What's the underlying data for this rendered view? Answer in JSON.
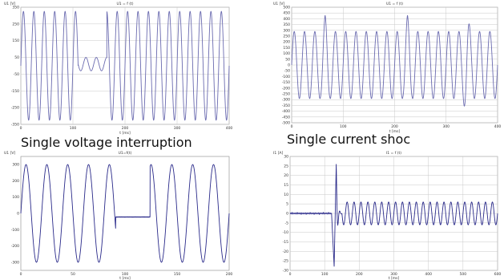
{
  "captions": {
    "top_left": "Single voltage interruption",
    "top_right": "Single current shoc"
  },
  "chart_data": [
    {
      "id": "tl",
      "type": "line",
      "title": "U1 = f (t)",
      "ylabel": "U1 [V]",
      "xlabel": "t [ms]",
      "xlim": [
        0,
        400
      ],
      "ylim": [
        -350,
        350
      ],
      "xticks": [
        0,
        100,
        200,
        300,
        400
      ],
      "yticks": [
        350,
        250,
        150,
        50,
        -50,
        -150,
        -250,
        -350
      ],
      "ytick_labels": [
        "350",
        "250",
        "150",
        "50",
        "-50",
        "-150",
        "-250",
        "-350"
      ],
      "grid": true,
      "series": [
        {
          "color": "#6b6bb0",
          "signal": {
            "segments": [
              {
                "start": 0,
                "end": 110,
                "kind": "sine",
                "freq_hz": 50,
                "amplitude": 325,
                "offset": 0
              },
              {
                "start": 110,
                "end": 165,
                "kind": "sine",
                "freq_hz": 50,
                "amplitude": 40,
                "offset": 10
              },
              {
                "start": 165,
                "end": 400,
                "kind": "sine",
                "freq_hz": 50,
                "amplitude": 325,
                "offset": 0
              }
            ]
          }
        }
      ]
    },
    {
      "id": "tr",
      "type": "line",
      "title": "U1 = f (t)",
      "ylabel": "U1 [V]",
      "xlabel": "t [ms]",
      "xlim": [
        0,
        400
      ],
      "ylim": [
        -500,
        500
      ],
      "xticks": [
        0,
        100,
        200,
        300,
        400
      ],
      "yticks": [
        500,
        450,
        400,
        350,
        300,
        250,
        200,
        150,
        100,
        50,
        0,
        -50,
        -100,
        -150,
        -200,
        -250,
        -300,
        -350,
        -400,
        -450,
        -500
      ],
      "ytick_labels": [
        "500",
        "450",
        "400",
        "350",
        "300",
        "250",
        "200",
        "150",
        "100",
        "50",
        "0",
        "-50",
        "-100",
        "-150",
        "-200",
        "-250",
        "-300",
        "-350",
        "-400",
        "-450",
        "-500"
      ],
      "grid": true,
      "series": [
        {
          "color": "#6b6bb0",
          "signal": {
            "segments": [
              {
                "start": 0,
                "end": 400,
                "kind": "sine",
                "freq_hz": 50,
                "amplitude": 290,
                "offset": 0,
                "bursts": [
                  {
                    "center": 65,
                    "width": 18,
                    "peak": 430
                  },
                  {
                    "center": 225,
                    "width": 18,
                    "peak": 430
                  },
                  {
                    "center": 340,
                    "width": 18,
                    "peak": 430
                  }
                ]
              }
            ]
          }
        }
      ]
    },
    {
      "id": "bl",
      "type": "line",
      "title": "U1=f(t)",
      "ylabel": "U1 [V]",
      "xlabel": "t [ms]",
      "xlim": [
        0,
        200
      ],
      "ylim": [
        -350,
        350
      ],
      "xticks": [
        0,
        50,
        100,
        150,
        200
      ],
      "yticks": [
        300,
        200,
        100,
        0,
        -100,
        -200,
        -300
      ],
      "ytick_labels": [
        "300",
        "200",
        "100",
        "0",
        "-100",
        "-200",
        "-300"
      ],
      "grid": false,
      "series": [
        {
          "color": "#2a2a8a",
          "signal": {
            "segments": [
              {
                "start": 0,
                "end": 91,
                "kind": "sine",
                "freq_hz": 50,
                "amplitude": 300,
                "offset": 0
              },
              {
                "start": 91,
                "end": 124,
                "kind": "flat",
                "value": -22
              },
              {
                "start": 124,
                "end": 200,
                "kind": "sine",
                "freq_hz": 50,
                "amplitude": 300,
                "offset": 0,
                "phase_deg": 0
              }
            ]
          }
        }
      ]
    },
    {
      "id": "br",
      "type": "line",
      "title": "I1 = f (t)",
      "ylabel": "I1 [A]",
      "xlabel": "t [ms]",
      "xlim": [
        0,
        600
      ],
      "ylim": [
        -30,
        30
      ],
      "xticks": [
        0,
        100,
        200,
        300,
        400,
        500,
        600
      ],
      "yticks": [
        30,
        25,
        20,
        15,
        10,
        5,
        0,
        -5,
        -10,
        -15,
        -20,
        -25,
        -30
      ],
      "ytick_labels": [
        "30",
        "25",
        "20",
        "15",
        "10",
        "5",
        "0",
        "-5",
        "-10",
        "-15",
        "-20",
        "-25",
        "-30"
      ],
      "grid": true,
      "series": [
        {
          "color": "#2a2a8a",
          "signal": {
            "segments": [
              {
                "start": 0,
                "end": 120,
                "kind": "flat",
                "value": 0
              },
              {
                "start": 120,
                "end": 150,
                "kind": "spike",
                "peak_pos": 26,
                "peak_neg": -28
              },
              {
                "start": 150,
                "end": 600,
                "kind": "sine",
                "freq_hz": 50,
                "amplitude": 6,
                "offset": 0
              }
            ]
          }
        }
      ]
    }
  ]
}
